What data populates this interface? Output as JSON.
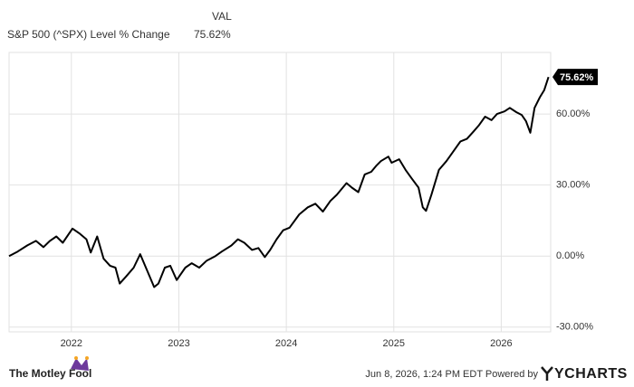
{
  "chart_data": {
    "type": "line",
    "legend_header": "VAL",
    "legend_value": "75.62%",
    "series": [
      {
        "name": "S&P 500 (^SPX) Level % Change",
        "color": "#000000",
        "x": [
          2021.42,
          2021.5,
          2021.59,
          2021.67,
          2021.74,
          2021.8,
          2021.86,
          2021.92,
          2022.01,
          2022.08,
          2022.14,
          2022.18,
          2022.24,
          2022.3,
          2022.36,
          2022.41,
          2022.45,
          2022.51,
          2022.58,
          2022.64,
          2022.7,
          2022.77,
          2022.81,
          2022.87,
          2022.92,
          2022.98,
          2023.06,
          2023.12,
          2023.19,
          2023.26,
          2023.34,
          2023.4,
          2023.49,
          2023.55,
          2023.61,
          2023.68,
          2023.74,
          2023.8,
          2023.85,
          2023.91,
          2023.97,
          2024.03,
          2024.12,
          2024.2,
          2024.27,
          2024.34,
          2024.41,
          2024.47,
          2024.56,
          2024.61,
          2024.67,
          2024.73,
          2024.79,
          2024.84,
          2024.88,
          2024.95,
          2024.98,
          2025.05,
          2025.11,
          2025.17,
          2025.23,
          2025.27,
          2025.3,
          2025.35,
          2025.42,
          2025.49,
          2025.55,
          2025.62,
          2025.68,
          2025.74,
          2025.79,
          2025.85,
          2025.91,
          2025.96,
          2026.03,
          2026.08,
          2026.14,
          2026.19,
          2026.23,
          2026.27,
          2026.31,
          2026.36,
          2026.4,
          2026.44
        ],
        "values": [
          0,
          1.9,
          4.5,
          6.4,
          3.8,
          6.4,
          8.3,
          5.6,
          11.6,
          9.4,
          7.1,
          1.5,
          8.3,
          -1.1,
          -4.1,
          -4.9,
          -11.6,
          -8.6,
          -4.9,
          0.8,
          -5.6,
          -13.1,
          -11.6,
          -4.9,
          -4.1,
          -10.1,
          -4.9,
          -3.0,
          -4.9,
          -1.9,
          0,
          1.9,
          4.5,
          7.1,
          5.6,
          2.6,
          3.4,
          -0.4,
          2.6,
          7.1,
          10.9,
          12.0,
          17.6,
          20.6,
          22.1,
          18.8,
          23.3,
          25.9,
          30.8,
          28.9,
          27.0,
          34.5,
          35.6,
          38.3,
          40.1,
          42.0,
          39.4,
          40.9,
          36.4,
          32.6,
          28.9,
          20.6,
          19.1,
          25.9,
          36.4,
          40.1,
          43.9,
          48.4,
          49.5,
          52.5,
          55.1,
          58.9,
          57.4,
          60.0,
          61.1,
          62.6,
          60.8,
          59.6,
          57.0,
          52.1,
          62.6,
          67.1,
          70.1,
          75.62
        ]
      }
    ],
    "xlim": [
      2021.42,
      2026.46
    ],
    "xticks": [
      2022,
      2023,
      2024,
      2025,
      2026
    ],
    "ylim": [
      -32,
      86
    ],
    "yticks": [
      {
        "value": -30,
        "label": "-30.00%"
      },
      {
        "value": 0,
        "label": "0.00%"
      },
      {
        "value": 30,
        "label": "30.00%"
      },
      {
        "value": 60,
        "label": "60.00%"
      }
    ],
    "grid": true
  },
  "footer": {
    "brand": "The Motley Fool",
    "timestamp": "Jun 8, 2026, 1:24 PM EDT Powered by",
    "provider": "YCHARTS"
  }
}
